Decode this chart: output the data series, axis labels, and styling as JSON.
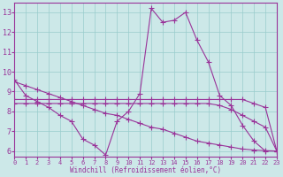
{
  "xlabel": "Windchill (Refroidissement éolien,°C)",
  "background_color": "#cce8e8",
  "grid_color": "#99cccc",
  "line_color": "#993399",
  "xlim": [
    0,
    23
  ],
  "ylim": [
    5.7,
    13.5
  ],
  "xticks": [
    0,
    1,
    2,
    3,
    4,
    5,
    6,
    7,
    8,
    9,
    10,
    11,
    12,
    13,
    14,
    15,
    16,
    17,
    18,
    19,
    20,
    21,
    22,
    23
  ],
  "yticks": [
    6,
    7,
    8,
    9,
    10,
    11,
    12,
    13
  ],
  "line1_x": [
    0,
    1,
    2,
    3,
    4,
    5,
    6,
    7,
    8,
    9,
    10,
    11,
    12,
    13,
    14,
    15,
    16,
    17,
    18,
    19,
    20,
    21,
    22,
    23
  ],
  "line1_y": [
    9.6,
    8.8,
    8.5,
    8.2,
    7.8,
    7.5,
    6.6,
    6.3,
    5.8,
    7.5,
    8.0,
    8.9,
    13.2,
    12.5,
    12.6,
    13.0,
    11.6,
    10.5,
    8.8,
    8.3,
    7.3,
    6.5,
    6.0,
    6.0
  ],
  "line2_x": [
    0,
    1,
    2,
    3,
    4,
    5,
    6,
    7,
    8,
    9,
    10,
    11,
    12,
    13,
    14,
    15,
    16,
    17,
    18,
    19,
    20,
    21,
    22,
    23
  ],
  "line2_y": [
    8.6,
    8.6,
    8.6,
    8.6,
    8.6,
    8.6,
    8.6,
    8.6,
    8.6,
    8.6,
    8.6,
    8.6,
    8.6,
    8.6,
    8.6,
    8.6,
    8.6,
    8.6,
    8.6,
    8.6,
    8.6,
    8.4,
    8.2,
    6.0
  ],
  "line3_x": [
    0,
    1,
    2,
    3,
    4,
    5,
    6,
    7,
    8,
    9,
    10,
    11,
    12,
    13,
    14,
    15,
    16,
    17,
    18,
    19,
    20,
    21,
    22,
    23
  ],
  "line3_y": [
    8.4,
    8.4,
    8.4,
    8.4,
    8.4,
    8.4,
    8.4,
    8.4,
    8.4,
    8.4,
    8.4,
    8.4,
    8.4,
    8.4,
    8.4,
    8.4,
    8.4,
    8.4,
    8.3,
    8.1,
    7.8,
    7.5,
    7.2,
    6.0
  ],
  "line4_x": [
    0,
    1,
    2,
    3,
    4,
    5,
    6,
    7,
    8,
    9,
    10,
    11,
    12,
    13,
    14,
    15,
    16,
    17,
    18,
    19,
    20,
    21,
    22,
    23
  ],
  "line4_y": [
    9.5,
    9.3,
    9.1,
    8.9,
    8.7,
    8.5,
    8.3,
    8.1,
    7.9,
    7.8,
    7.6,
    7.4,
    7.2,
    7.1,
    6.9,
    6.7,
    6.5,
    6.4,
    6.3,
    6.2,
    6.1,
    6.05,
    6.02,
    6.0
  ]
}
